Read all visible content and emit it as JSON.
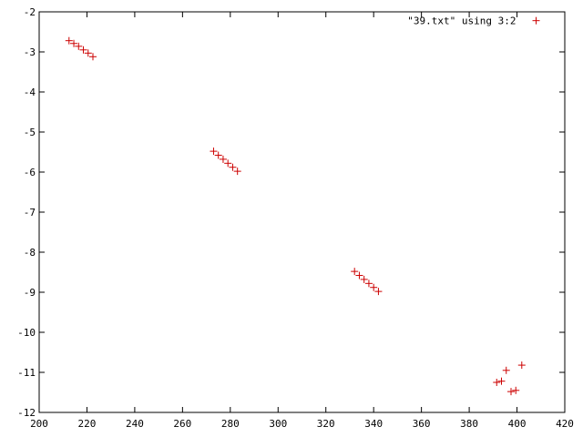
{
  "chart_data": {
    "type": "scatter",
    "title": "",
    "xlabel": "",
    "ylabel": "",
    "xlim": [
      200,
      420
    ],
    "ylim": [
      -12,
      -2
    ],
    "xticks": [
      200,
      220,
      240,
      260,
      280,
      300,
      320,
      340,
      360,
      380,
      400,
      420
    ],
    "yticks": [
      -2,
      -3,
      -4,
      -5,
      -6,
      -7,
      -8,
      -9,
      -10,
      -11,
      -12
    ],
    "xtick_labels": [
      "200",
      "220",
      "240",
      "260",
      "280",
      "300",
      "320",
      "340",
      "360",
      "380",
      "400",
      "420"
    ],
    "ytick_labels": [
      "-2",
      "-3",
      "-4",
      "-5",
      "-6",
      "-7",
      "-8",
      "-9",
      "-10",
      "-11",
      "-12"
    ],
    "grid": false,
    "legend_position": "top-right",
    "series": [
      {
        "name": "\"39.txt\" using 3:2",
        "color": "#cc0000",
        "marker": "plus",
        "x": [
          212.5,
          214.5,
          216.5,
          218.5,
          220.5,
          222.5,
          273.0,
          275.0,
          277.0,
          279.0,
          281.0,
          283.0,
          332.0,
          334.0,
          336.0,
          338.0,
          340.0,
          342.0,
          391.5,
          393.5,
          395.5,
          397.5,
          399.5,
          402.0,
          408.0
        ],
        "y": [
          -2.72,
          -2.79,
          -2.86,
          -2.95,
          -3.03,
          -3.12,
          -5.48,
          -5.58,
          -5.68,
          -5.78,
          -5.88,
          -5.98,
          -8.48,
          -8.58,
          -8.68,
          -8.78,
          -8.88,
          -8.98,
          -11.25,
          -11.22,
          -10.95,
          -11.48,
          -11.45,
          -10.82,
          -2.22
        ]
      }
    ]
  }
}
